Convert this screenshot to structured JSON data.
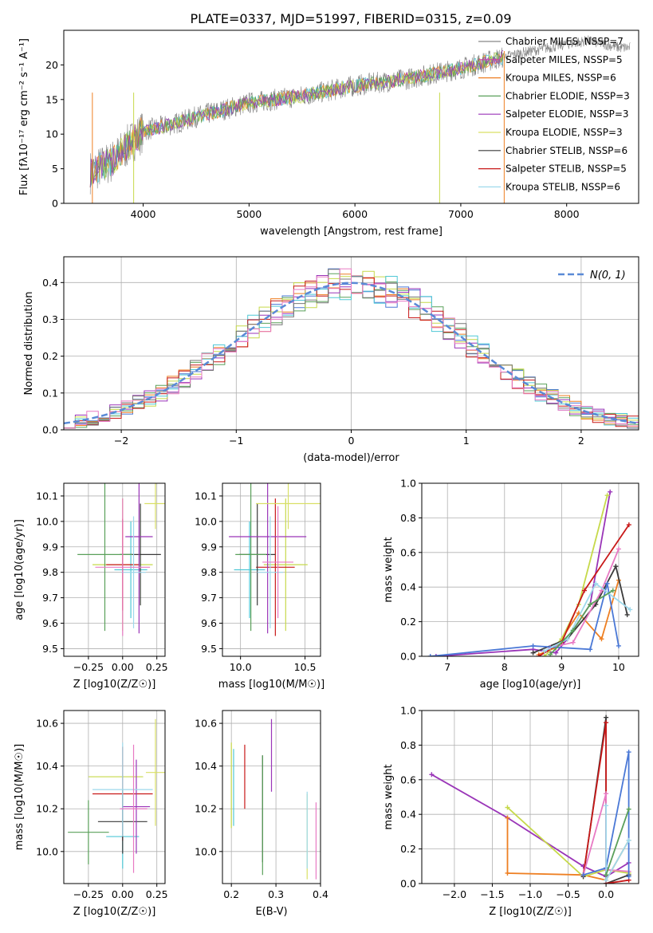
{
  "figure": {
    "title": "PLATE=0337, MJD=51997, FIBERID=0315, z=0.09"
  },
  "chart_data": [
    {
      "id": "spectrum",
      "type": "line",
      "xlabel": "wavelength [Angstrom, rest frame]",
      "ylabel": "Flux [fλ10⁻¹⁷ erg cm⁻² s⁻¹ A⁻¹]",
      "xlim": [
        3250,
        8680
      ],
      "ylim": [
        0,
        25
      ],
      "xticks": [
        4000,
        5000,
        6000,
        7000,
        8000
      ],
      "yticks": [
        0,
        5,
        10,
        15,
        20
      ],
      "grid": false,
      "legend_position": "top-right",
      "legend": [
        "Chabrier MILES, NSSP=7",
        "Salpeter MILES, NSSP=5",
        "Kroupa MILES, NSSP=6",
        "Chabrier ELODIE, NSSP=3",
        "Salpeter ELODIE, NSSP=3",
        "Kroupa ELODIE, NSSP=3",
        "Chabrier STELIB, NSSP=6",
        "Salpeter STELIB, NSSP=5",
        "Kroupa STELIB, NSSP=6"
      ],
      "series": [
        {
          "name": "data",
          "x": [
            3500,
            3700,
            4000,
            4300,
            4500,
            5000,
            5500,
            6000,
            6500,
            7000,
            7500,
            8000,
            8200,
            8500
          ],
          "y": [
            4.5,
            6,
            10.5,
            11.5,
            12.5,
            14.5,
            15.5,
            17,
            18,
            19.5,
            21.5,
            23,
            23.5,
            22.5
          ]
        }
      ],
      "model_range": [
        3500,
        7400
      ]
    },
    {
      "id": "residual-hist",
      "type": "line",
      "xlabel": "(data-model)/error",
      "ylabel": "Normed distribution",
      "xlim": [
        -2.5,
        2.5
      ],
      "ylim": [
        0,
        0.47
      ],
      "xticks": [
        -2,
        -1,
        0,
        1,
        2
      ],
      "yticks": [
        0.0,
        0.1,
        0.2,
        0.3,
        0.4
      ],
      "grid": true,
      "legend_position": "top-right",
      "legend": [
        "N(0, 1)"
      ]
    },
    {
      "id": "age-vs-Z",
      "type": "scatter",
      "xlabel": "Z [log10(Z/Z☉)]",
      "ylabel": "age  [log10(age/yr)]",
      "xlim": [
        -0.43,
        0.31
      ],
      "ylim": [
        9.47,
        10.15
      ],
      "xticks": [
        -0.25,
        0.0,
        0.25
      ],
      "yticks": [
        9.5,
        9.6,
        9.7,
        9.8,
        9.9,
        10.0,
        10.1
      ],
      "grid": true,
      "points": [
        {
          "x": 0.0,
          "xerr": 0.22,
          "y": 9.83,
          "yerr": 0.26
        },
        {
          "x": 0.06,
          "xerr": 0.12,
          "y": 9.81,
          "yerr": 0.19
        },
        {
          "x": 0.0,
          "xerr": 0.12,
          "y": 9.83,
          "yerr": 0.18
        },
        {
          "x": 0.13,
          "xerr": 0.15,
          "y": 9.87,
          "yerr": 0.2
        },
        {
          "x": -0.13,
          "xerr": 0.2,
          "y": 9.87,
          "yerr": 0.3
        },
        {
          "x": 0.12,
          "xerr": 0.1,
          "y": 9.94,
          "yerr": 0.38
        },
        {
          "x": 0.24,
          "xerr": 0.08,
          "y": 10.07,
          "yerr": 0.1
        },
        {
          "x": 0.08,
          "xerr": 0.09,
          "y": 9.8,
          "yerr": 0.22
        },
        {
          "x": 0.0,
          "xerr": 0.2,
          "y": 9.82,
          "yerr": 0.27
        }
      ]
    },
    {
      "id": "age-vs-mass",
      "type": "scatter",
      "xlabel": "mass [log10(M/M☉)]",
      "ylabel": "",
      "xlim": [
        9.86,
        10.62
      ],
      "ylim": [
        9.47,
        10.15
      ],
      "xticks": [
        10.0,
        10.5
      ],
      "yticks": [
        9.5,
        9.6,
        9.7,
        9.8,
        9.9,
        10.0,
        10.1
      ],
      "grid": true,
      "points": [
        {
          "x": 10.35,
          "xerr": 0.17,
          "y": 9.83,
          "yerr": 0.26
        },
        {
          "x": 10.07,
          "xerr": 0.12,
          "y": 9.81,
          "yerr": 0.19
        },
        {
          "x": 10.27,
          "xerr": 0.15,
          "y": 9.82,
          "yerr": 0.27
        },
        {
          "x": 10.13,
          "xerr": 0.14,
          "y": 9.87,
          "yerr": 0.2
        },
        {
          "x": 10.08,
          "xerr": 0.12,
          "y": 9.87,
          "yerr": 0.3
        },
        {
          "x": 10.21,
          "xerr": 0.3,
          "y": 9.94,
          "yerr": 0.38
        },
        {
          "x": 10.37,
          "xerr": 0.25,
          "y": 10.07,
          "yerr": 0.1
        },
        {
          "x": 10.23,
          "xerr": 0.1,
          "y": 9.8,
          "yerr": 0.22
        },
        {
          "x": 10.29,
          "xerr": 0.12,
          "y": 9.84,
          "yerr": 0.22
        }
      ]
    },
    {
      "id": "weight-vs-age",
      "type": "line",
      "xlabel": "age  [log10(age/yr)]",
      "ylabel": "mass weight",
      "xlim": [
        6.55,
        10.35
      ],
      "ylim": [
        0,
        1.0
      ],
      "xticks": [
        7,
        8,
        9,
        10
      ],
      "yticks": [
        0.0,
        0.2,
        0.4,
        0.6,
        0.8,
        1.0
      ],
      "grid": true,
      "series": [
        {
          "x": [
            6.8,
            8.5,
            8.9,
            9.1,
            9.5,
            9.85
          ],
          "y": [
            0.0,
            0.04,
            0.02,
            0.1,
            0.3,
            0.95
          ]
        },
        {
          "x": [
            8.6,
            8.9,
            9.3,
            9.7,
            10.0
          ],
          "y": [
            0.01,
            0.05,
            0.25,
            0.1,
            0.44
          ]
        },
        {
          "x": [
            8.7,
            9.0,
            9.3,
            9.8
          ],
          "y": [
            0.0,
            0.1,
            0.3,
            0.93
          ]
        },
        {
          "x": [
            8.5,
            9.1,
            9.6,
            9.95,
            10.15
          ],
          "y": [
            0.02,
            0.1,
            0.3,
            0.52,
            0.24
          ]
        },
        {
          "x": [
            8.6,
            9.0,
            9.4,
            10.18
          ],
          "y": [
            0.0,
            0.08,
            0.38,
            0.76
          ]
        },
        {
          "x": [
            8.8,
            9.2,
            9.7,
            10.0
          ],
          "y": [
            0.05,
            0.08,
            0.38,
            0.62
          ]
        },
        {
          "x": [
            6.7,
            8.5,
            9.5,
            9.8,
            10.0
          ],
          "y": [
            0.0,
            0.06,
            0.04,
            0.42,
            0.06
          ]
        },
        {
          "x": [
            8.7,
            9.1,
            9.6,
            10.2
          ],
          "y": [
            0.03,
            0.1,
            0.42,
            0.27
          ]
        },
        {
          "x": [
            8.8,
            9.2,
            9.5,
            9.9
          ],
          "y": [
            0.01,
            0.15,
            0.3,
            0.38
          ]
        }
      ]
    },
    {
      "id": "mass-vs-Z",
      "type": "scatter",
      "xlabel": "Z [log10(Z/Z☉)]",
      "ylabel": "mass [log10(M/M☉)]",
      "xlim": [
        -0.43,
        0.31
      ],
      "ylim": [
        9.85,
        10.66
      ],
      "xticks": [
        -0.25,
        0.0,
        0.25
      ],
      "yticks": [
        10.0,
        10.2,
        10.4,
        10.6
      ],
      "grid": true,
      "points": [
        {
          "x": -0.05,
          "xerr": 0.2,
          "y": 10.35,
          "yerr": 0.0
        },
        {
          "x": 0.0,
          "xerr": 0.12,
          "y": 10.07,
          "yerr": 0.15
        },
        {
          "x": 0.0,
          "xerr": 0.22,
          "y": 10.27,
          "yerr": 0.22
        },
        {
          "x": 0.0,
          "xerr": 0.18,
          "y": 10.14,
          "yerr": 0.15
        },
        {
          "x": -0.25,
          "xerr": 0.15,
          "y": 10.09,
          "yerr": 0.15
        },
        {
          "x": 0.1,
          "xerr": 0.1,
          "y": 10.21,
          "yerr": 0.22
        },
        {
          "x": 0.24,
          "xerr": 0.07,
          "y": 10.37,
          "yerr": 0.25
        },
        {
          "x": 0.0,
          "xerr": 0.22,
          "y": 10.29,
          "yerr": 0.22
        },
        {
          "x": 0.08,
          "xerr": 0.1,
          "y": 10.2,
          "yerr": 0.3
        }
      ]
    },
    {
      "id": "mass-vs-ebv",
      "type": "scatter",
      "xlabel": "E(B-V)",
      "ylabel": "",
      "xlim": [
        0.18,
        0.4
      ],
      "ylim": [
        9.85,
        10.66
      ],
      "xticks": [
        0.2,
        0.3,
        0.4
      ],
      "yticks": [
        10.0,
        10.2,
        10.4,
        10.6
      ],
      "grid": true,
      "points": [
        {
          "x": 0.2,
          "y": 10.31,
          "yerr": 0.2
        },
        {
          "x": 0.205,
          "y": 10.3,
          "yerr": 0.18
        },
        {
          "x": 0.23,
          "y": 10.35,
          "yerr": 0.15
        },
        {
          "x": 0.27,
          "y": 10.2,
          "yerr": 0.25
        },
        {
          "x": 0.27,
          "y": 10.17,
          "yerr": 0.28
        },
        {
          "x": 0.29,
          "y": 10.45,
          "yerr": 0.17
        },
        {
          "x": 0.37,
          "y": 10.07,
          "yerr": 0.2
        },
        {
          "x": 0.37,
          "y": 10.1,
          "yerr": 0.18
        },
        {
          "x": 0.39,
          "y": 10.05,
          "yerr": 0.18
        }
      ]
    },
    {
      "id": "weight-vs-Z",
      "type": "line",
      "xlabel": "Z [log10(Z/Z☉)]",
      "ylabel": "mass weight",
      "xlim": [
        -2.43,
        0.43
      ],
      "ylim": [
        0,
        1.0
      ],
      "xticks": [
        -2.0,
        -1.5,
        -1.0,
        -0.5,
        0.0
      ],
      "yticks": [
        0.0,
        0.2,
        0.4,
        0.6,
        0.8,
        1.0
      ],
      "grid": true,
      "series": [
        {
          "x": [
            -2.3,
            -1.3,
            -0.3,
            0.0,
            0.3
          ],
          "y": [
            0.63,
            0.38,
            0.1,
            0.04,
            0.12
          ]
        },
        {
          "x": [
            -1.3,
            -1.3,
            -0.3,
            0.0,
            0.3
          ],
          "y": [
            0.38,
            0.06,
            0.05,
            0.02,
            0.25
          ]
        },
        {
          "x": [
            -1.3,
            -0.3,
            0.0,
            0.3
          ],
          "y": [
            0.44,
            0.04,
            0.08,
            0.06
          ]
        },
        {
          "x": [
            -0.3,
            0.0,
            0.0,
            0.3
          ],
          "y": [
            0.04,
            0.96,
            0.0,
            0.05
          ]
        },
        {
          "x": [
            -0.3,
            0.0,
            0.0,
            0.3
          ],
          "y": [
            0.05,
            0.93,
            0.0,
            0.02
          ]
        },
        {
          "x": [
            -0.3,
            0.0,
            0.0,
            0.3
          ],
          "y": [
            0.05,
            0.52,
            0.08,
            0.07
          ]
        },
        {
          "x": [
            -0.3,
            0.0,
            0.3,
            0.3
          ],
          "y": [
            0.05,
            0.09,
            0.76,
            0.04
          ]
        },
        {
          "x": [
            0.0,
            0.0,
            0.3
          ],
          "y": [
            0.45,
            0.02,
            0.25
          ]
        },
        {
          "x": [
            0.0,
            0.3
          ],
          "y": [
            0.05,
            0.43
          ]
        }
      ]
    }
  ],
  "colors": {
    "series": [
      "#4a78d6",
      "#ee7f22",
      "#cc44aa",
      "#888888",
      "#c6d94a",
      "#4fc8d6",
      "#c81818",
      "#3a3a3a",
      "#5aa05a",
      "#9a35b8",
      "#d9e066",
      "#9ed9ec",
      "#e87ac4"
    ],
    "data_line": "#808080",
    "grid": "#b0b0b0",
    "normal_curve": "#5a8ad6"
  }
}
